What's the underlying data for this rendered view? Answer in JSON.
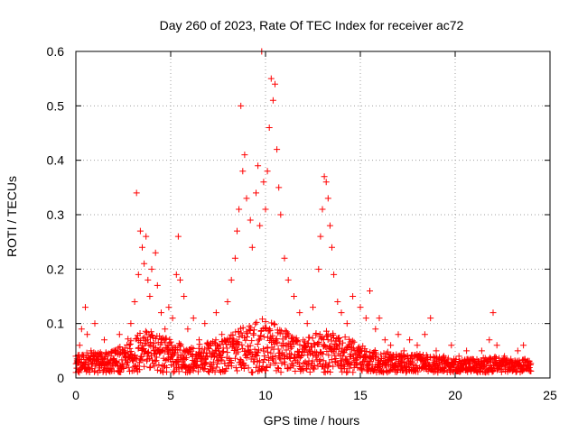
{
  "chart_data": {
    "type": "scatter",
    "title": "Day 260 of 2023, Rate Of TEC Index for receiver ac72",
    "xlabel": "GPS time / hours",
    "ylabel": "ROTI / TECUs",
    "xlim": [
      0,
      25
    ],
    "ylim": [
      0,
      0.6
    ],
    "x_ticks": [
      0,
      5,
      10,
      15,
      20,
      25
    ],
    "x_tick_labels": [
      "0",
      "5",
      "10",
      "15",
      "20",
      "25"
    ],
    "y_ticks": [
      0,
      0.1,
      0.2,
      0.3,
      0.4,
      0.5,
      0.6
    ],
    "y_tick_labels": [
      "0",
      "0.1",
      "0.2",
      "0.3",
      "0.4",
      "0.5",
      "0.6"
    ],
    "grid": true,
    "marker": "+",
    "color": "#ff0000",
    "series": [
      {
        "name": "ROTI",
        "points": [
          [
            0.0,
            0.04
          ],
          [
            0.1,
            0.03
          ],
          [
            0.2,
            0.06
          ],
          [
            0.3,
            0.09
          ],
          [
            0.5,
            0.13
          ],
          [
            0.6,
            0.08
          ],
          [
            0.8,
            0.05
          ],
          [
            1.0,
            0.1
          ],
          [
            1.2,
            0.04
          ],
          [
            1.5,
            0.07
          ],
          [
            1.8,
            0.03
          ],
          [
            2.0,
            0.05
          ],
          [
            2.3,
            0.08
          ],
          [
            2.6,
            0.04
          ],
          [
            2.9,
            0.1
          ],
          [
            3.1,
            0.14
          ],
          [
            3.2,
            0.34
          ],
          [
            3.3,
            0.19
          ],
          [
            3.4,
            0.27
          ],
          [
            3.5,
            0.24
          ],
          [
            3.6,
            0.21
          ],
          [
            3.7,
            0.26
          ],
          [
            3.8,
            0.18
          ],
          [
            3.9,
            0.15
          ],
          [
            4.0,
            0.2
          ],
          [
            4.2,
            0.23
          ],
          [
            4.3,
            0.17
          ],
          [
            4.5,
            0.12
          ],
          [
            4.7,
            0.09
          ],
          [
            4.9,
            0.13
          ],
          [
            5.1,
            0.11
          ],
          [
            5.3,
            0.19
          ],
          [
            5.4,
            0.26
          ],
          [
            5.5,
            0.18
          ],
          [
            5.7,
            0.15
          ],
          [
            5.9,
            0.09
          ],
          [
            6.2,
            0.11
          ],
          [
            6.5,
            0.07
          ],
          [
            6.8,
            0.1
          ],
          [
            7.1,
            0.06
          ],
          [
            7.4,
            0.12
          ],
          [
            7.7,
            0.08
          ],
          [
            8.0,
            0.14
          ],
          [
            8.2,
            0.18
          ],
          [
            8.4,
            0.22
          ],
          [
            8.5,
            0.27
          ],
          [
            8.6,
            0.31
          ],
          [
            8.7,
            0.5
          ],
          [
            8.8,
            0.38
          ],
          [
            8.9,
            0.41
          ],
          [
            9.0,
            0.33
          ],
          [
            9.2,
            0.29
          ],
          [
            9.3,
            0.24
          ],
          [
            9.5,
            0.34
          ],
          [
            9.6,
            0.39
          ],
          [
            9.7,
            0.28
          ],
          [
            9.8,
            0.6
          ],
          [
            9.9,
            0.36
          ],
          [
            10.0,
            0.31
          ],
          [
            10.1,
            0.38
          ],
          [
            10.2,
            0.46
          ],
          [
            10.3,
            0.55
          ],
          [
            10.4,
            0.51
          ],
          [
            10.5,
            0.54
          ],
          [
            10.6,
            0.42
          ],
          [
            10.7,
            0.35
          ],
          [
            10.8,
            0.3
          ],
          [
            11.0,
            0.22
          ],
          [
            11.2,
            0.18
          ],
          [
            11.5,
            0.15
          ],
          [
            11.8,
            0.12
          ],
          [
            12.2,
            0.1
          ],
          [
            12.5,
            0.13
          ],
          [
            12.8,
            0.2
          ],
          [
            12.9,
            0.26
          ],
          [
            13.0,
            0.31
          ],
          [
            13.1,
            0.37
          ],
          [
            13.2,
            0.36
          ],
          [
            13.3,
            0.33
          ],
          [
            13.4,
            0.28
          ],
          [
            13.5,
            0.24
          ],
          [
            13.6,
            0.19
          ],
          [
            13.8,
            0.14
          ],
          [
            14.0,
            0.12
          ],
          [
            14.3,
            0.1
          ],
          [
            14.6,
            0.15
          ],
          [
            15.0,
            0.13
          ],
          [
            15.3,
            0.11
          ],
          [
            15.5,
            0.16
          ],
          [
            15.8,
            0.09
          ],
          [
            16.0,
            0.11
          ],
          [
            16.3,
            0.07
          ],
          [
            16.6,
            0.06
          ],
          [
            17.0,
            0.08
          ],
          [
            17.3,
            0.05
          ],
          [
            17.6,
            0.07
          ],
          [
            18.0,
            0.06
          ],
          [
            18.4,
            0.08
          ],
          [
            18.7,
            0.11
          ],
          [
            19.0,
            0.05
          ],
          [
            19.4,
            0.04
          ],
          [
            19.8,
            0.06
          ],
          [
            20.2,
            0.04
          ],
          [
            20.6,
            0.05
          ],
          [
            21.0,
            0.03
          ],
          [
            21.4,
            0.05
          ],
          [
            21.8,
            0.07
          ],
          [
            22.0,
            0.12
          ],
          [
            22.2,
            0.06
          ],
          [
            22.6,
            0.04
          ],
          [
            23.0,
            0.03
          ],
          [
            23.3,
            0.05
          ],
          [
            23.6,
            0.06
          ],
          [
            23.9,
            0.03
          ]
        ]
      }
    ],
    "background_noise": {
      "x_start": 0.0,
      "x_end": 24.0,
      "x_step": 0.03,
      "levels": [
        [
          0,
          0.035
        ],
        [
          2,
          0.04
        ],
        [
          3,
          0.07
        ],
        [
          4,
          0.08
        ],
        [
          5,
          0.06
        ],
        [
          6,
          0.05
        ],
        [
          7,
          0.055
        ],
        [
          8,
          0.07
        ],
        [
          9,
          0.09
        ],
        [
          10,
          0.1
        ],
        [
          11,
          0.08
        ],
        [
          12,
          0.06
        ],
        [
          13,
          0.08
        ],
        [
          14,
          0.07
        ],
        [
          15,
          0.05
        ],
        [
          16,
          0.04
        ],
        [
          17,
          0.035
        ],
        [
          18,
          0.035
        ],
        [
          19,
          0.03
        ],
        [
          20,
          0.025
        ],
        [
          21,
          0.025
        ],
        [
          22,
          0.03
        ],
        [
          23,
          0.025
        ],
        [
          24,
          0.025
        ]
      ]
    }
  }
}
